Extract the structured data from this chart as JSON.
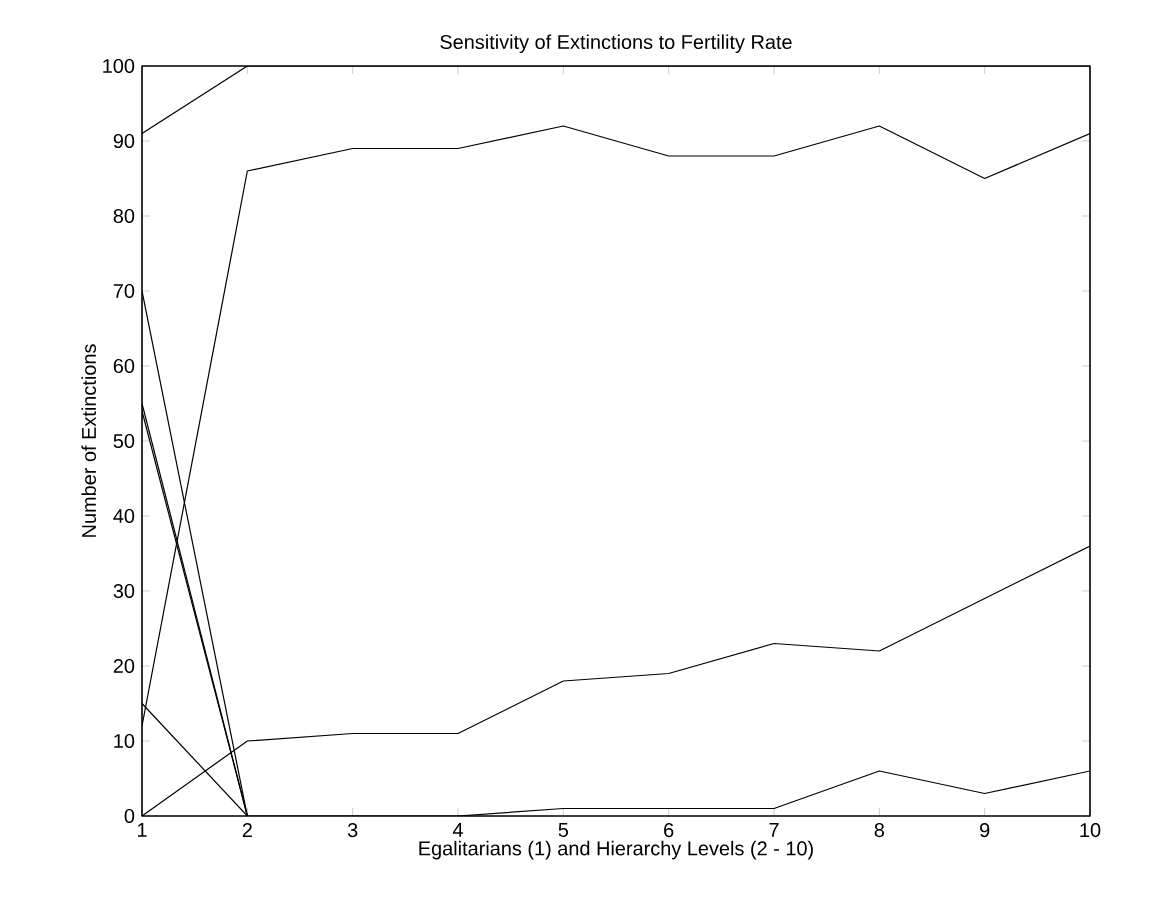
{
  "chart_data": {
    "type": "line",
    "title": "Sensitivity of Extinctions to Fertility Rate",
    "xlabel": "Egalitarians (1) and Hierarchy Levels (2 - 10)",
    "ylabel": "Number of Extinctions",
    "x": [
      1,
      2,
      3,
      4,
      5,
      6,
      7,
      8,
      9,
      10
    ],
    "series": [
      {
        "color": "#000000",
        "values": [
          91,
          100,
          100,
          100,
          100,
          100,
          100,
          100,
          100,
          100
        ]
      },
      {
        "color": "#000000",
        "values": [
          12,
          86,
          89,
          89,
          92,
          88,
          88,
          92,
          85,
          91
        ]
      },
      {
        "color": "#000000",
        "values": [
          0,
          10,
          11,
          11,
          18,
          19,
          23,
          22,
          29,
          36
        ]
      },
      {
        "color": "#000000",
        "values": [
          70,
          0,
          null,
          null,
          null,
          null,
          null,
          null,
          null,
          null
        ]
      },
      {
        "color": "#000000",
        "values": [
          55,
          0,
          null,
          null,
          null,
          null,
          null,
          null,
          null,
          null
        ]
      },
      {
        "color": "#000000",
        "values": [
          54,
          0,
          null,
          null,
          null,
          null,
          null,
          null,
          null,
          null
        ]
      },
      {
        "color": "#000000",
        "values": [
          15,
          0,
          0,
          0,
          1,
          1,
          1,
          6,
          3,
          6
        ]
      }
    ],
    "xlim": [
      1,
      10
    ],
    "ylim": [
      0,
      100
    ],
    "xticks": [
      1,
      2,
      3,
      4,
      5,
      6,
      7,
      8,
      9,
      10
    ],
    "yticks": [
      0,
      10,
      20,
      30,
      40,
      50,
      60,
      70,
      80,
      90,
      100
    ],
    "grid": false,
    "marker": "none",
    "line_style": "solid"
  }
}
